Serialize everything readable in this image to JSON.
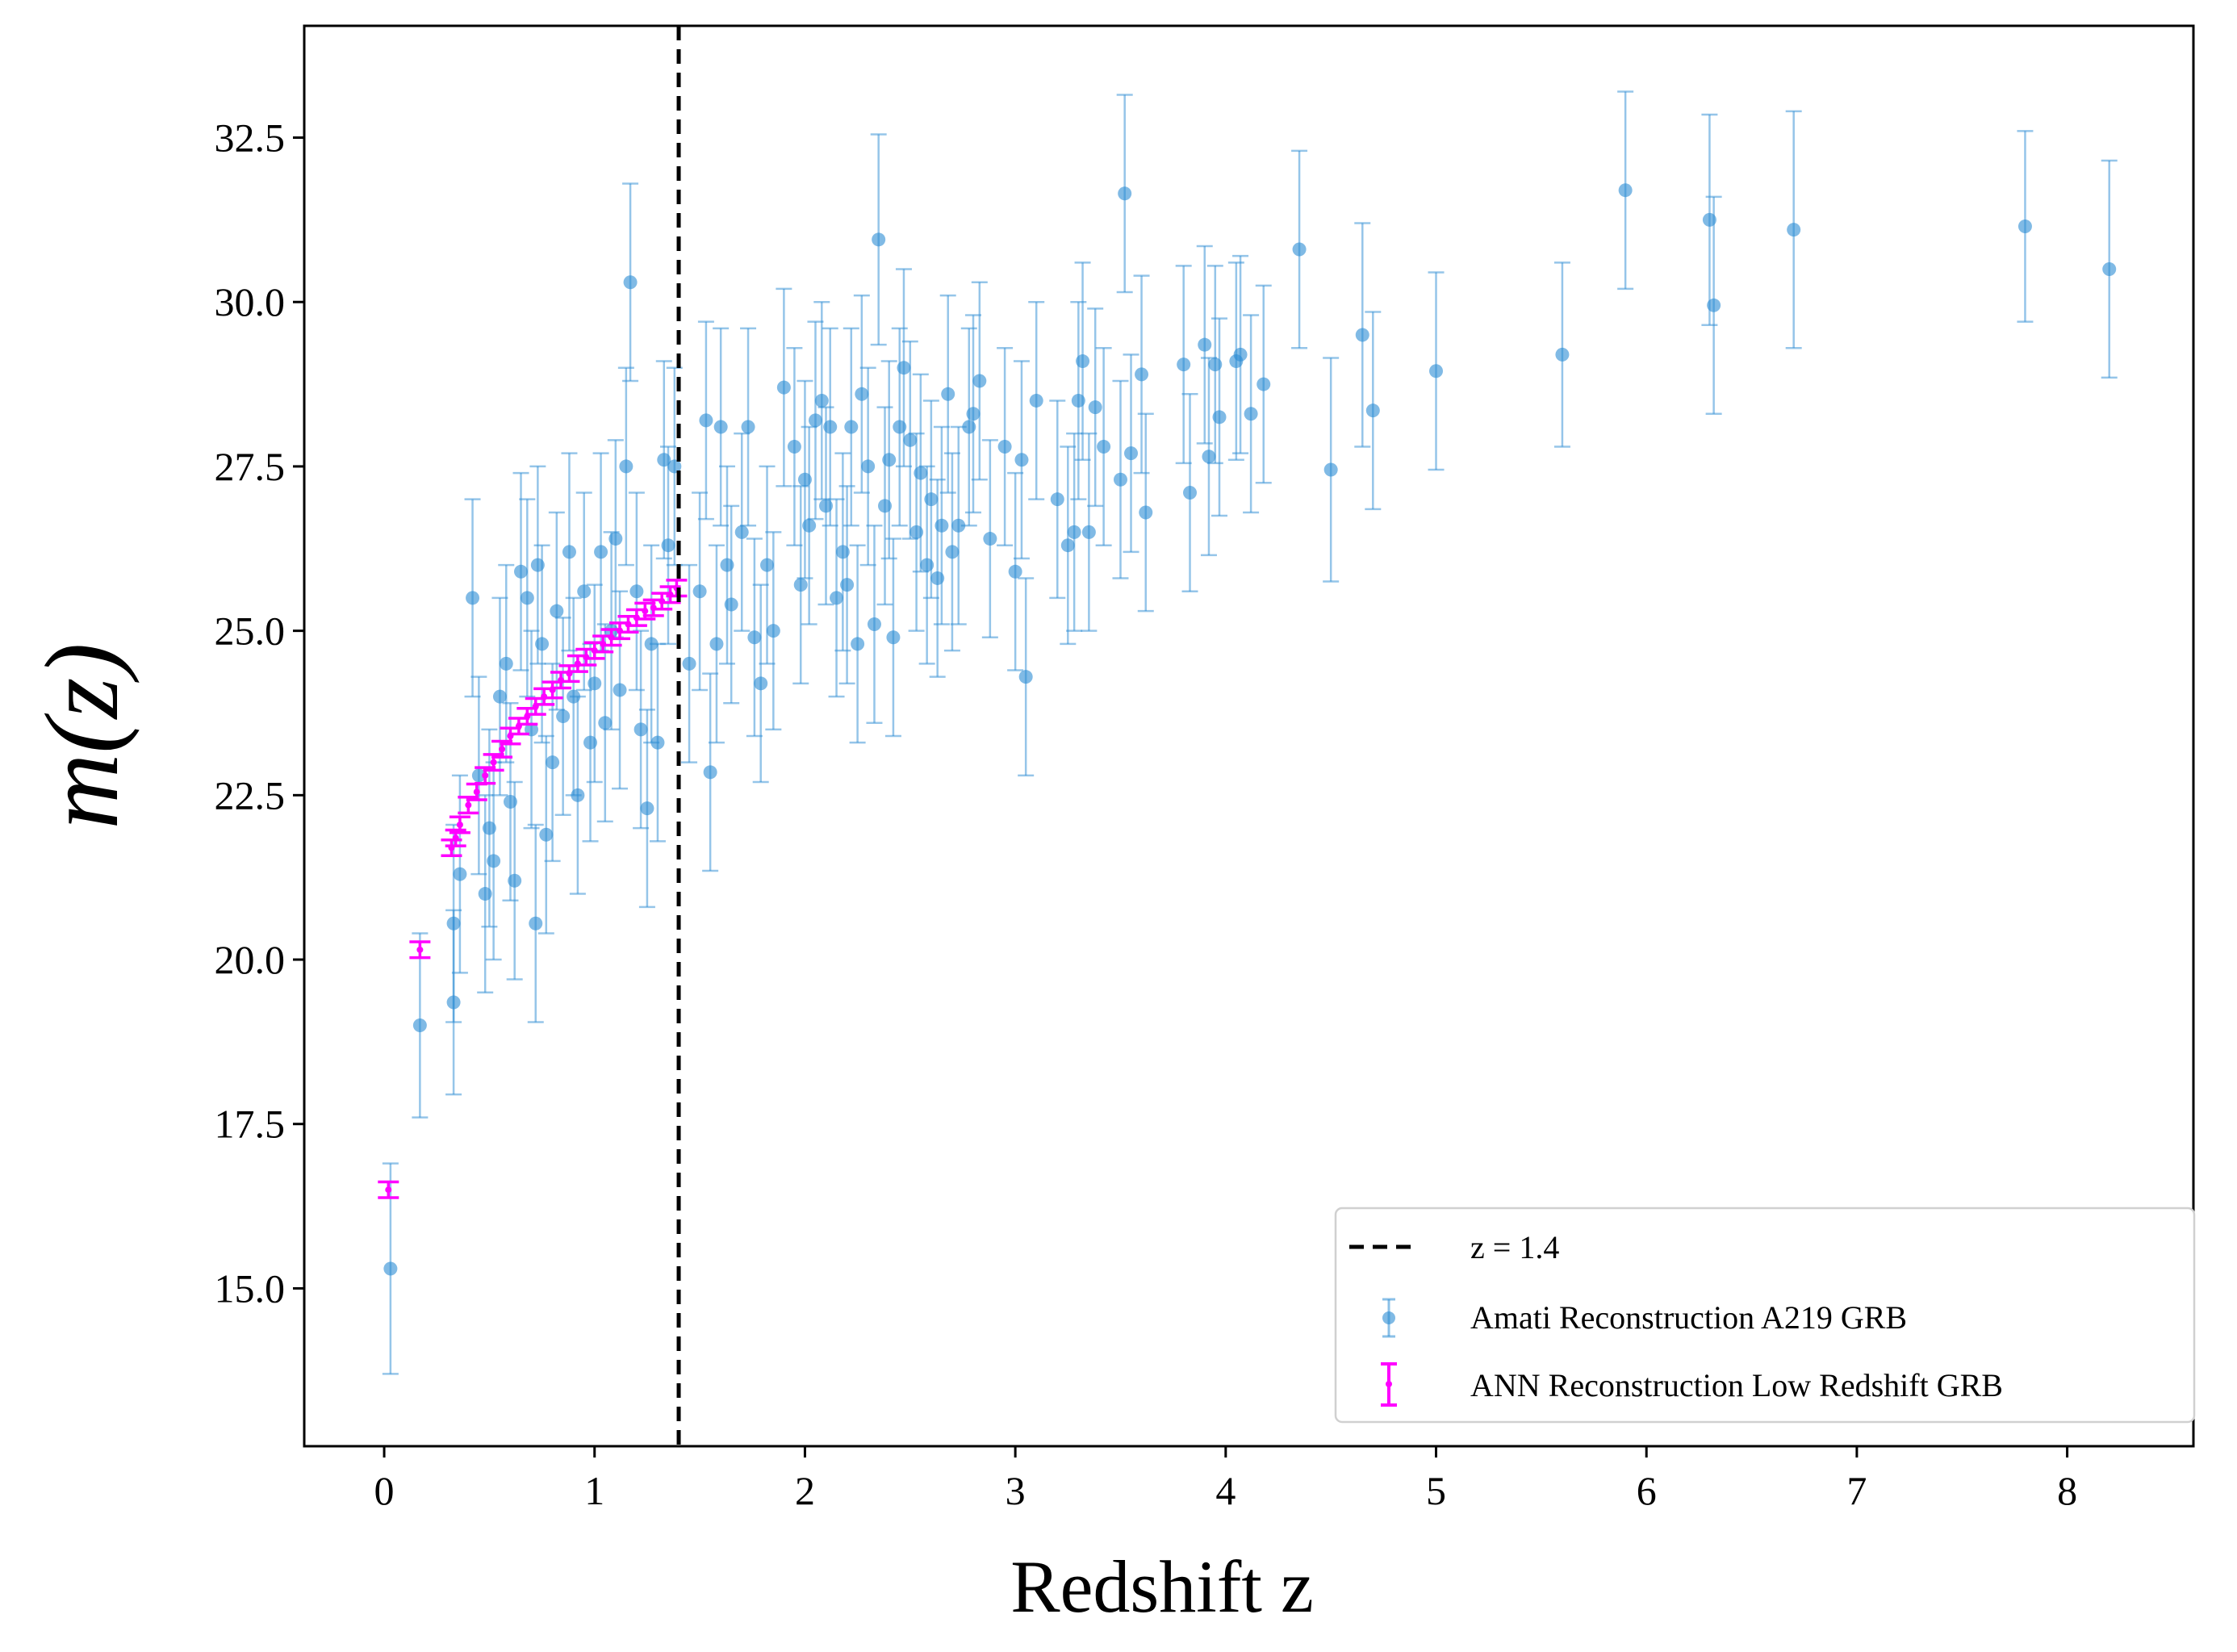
{
  "chart_data": {
    "type": "scatter",
    "title": "",
    "xlabel": "Redshift z",
    "ylabel": "m(z)",
    "xlim": [
      -0.38,
      8.6
    ],
    "ylim": [
      12.6,
      34.2
    ],
    "x_ticks": [
      0,
      1,
      2,
      3,
      4,
      5,
      6,
      7,
      8
    ],
    "x_tick_labels": [
      "0",
      "1",
      "2",
      "3",
      "4",
      "5",
      "6",
      "7",
      "8"
    ],
    "y_ticks": [
      15.0,
      17.5,
      20.0,
      22.5,
      25.0,
      27.5,
      30.0,
      32.5
    ],
    "y_tick_labels": [
      "15.0",
      "17.5",
      "20.0",
      "22.5",
      "25.0",
      "27.5",
      "30.0",
      "32.5"
    ],
    "grid": false,
    "legend_position": "bottom-right",
    "vline": {
      "x": 1.4,
      "label": "z = 1.4",
      "style": "dashed",
      "color": "#000000"
    },
    "series": [
      {
        "name": "Amati Reconstruction A219 GRB",
        "color": "#2b8cd4",
        "marker": "circle",
        "points": [
          {
            "x": 0.03,
            "y": 15.3,
            "err": 1.6
          },
          {
            "x": 0.17,
            "y": 19.0,
            "err": 1.4
          },
          {
            "x": 0.33,
            "y": 19.35,
            "err": 1.4
          },
          {
            "x": 0.33,
            "y": 20.55,
            "err": 1.5
          },
          {
            "x": 0.36,
            "y": 21.3,
            "err": 1.5
          },
          {
            "x": 0.42,
            "y": 25.5,
            "err": 1.5
          },
          {
            "x": 0.45,
            "y": 22.8,
            "err": 1.5
          },
          {
            "x": 0.48,
            "y": 21.0,
            "err": 1.5
          },
          {
            "x": 0.5,
            "y": 22.0,
            "err": 1.5
          },
          {
            "x": 0.52,
            "y": 21.5,
            "err": 1.5
          },
          {
            "x": 0.55,
            "y": 24.0,
            "err": 1.5
          },
          {
            "x": 0.58,
            "y": 24.5,
            "err": 1.5
          },
          {
            "x": 0.6,
            "y": 22.4,
            "err": 1.5
          },
          {
            "x": 0.62,
            "y": 21.2,
            "err": 1.5
          },
          {
            "x": 0.65,
            "y": 25.9,
            "err": 1.5
          },
          {
            "x": 0.68,
            "y": 25.5,
            "err": 1.5
          },
          {
            "x": 0.7,
            "y": 23.5,
            "err": 1.5
          },
          {
            "x": 0.72,
            "y": 20.55,
            "err": 1.5
          },
          {
            "x": 0.73,
            "y": 26.0,
            "err": 1.5
          },
          {
            "x": 0.75,
            "y": 24.8,
            "err": 1.5
          },
          {
            "x": 0.77,
            "y": 21.9,
            "err": 1.5
          },
          {
            "x": 0.8,
            "y": 23.0,
            "err": 1.5
          },
          {
            "x": 0.82,
            "y": 25.3,
            "err": 1.5
          },
          {
            "x": 0.85,
            "y": 23.7,
            "err": 1.5
          },
          {
            "x": 0.88,
            "y": 26.2,
            "err": 1.5
          },
          {
            "x": 0.9,
            "y": 24.0,
            "err": 1.5
          },
          {
            "x": 0.92,
            "y": 22.5,
            "err": 1.5
          },
          {
            "x": 0.95,
            "y": 25.6,
            "err": 1.5
          },
          {
            "x": 0.98,
            "y": 23.3,
            "err": 1.5
          },
          {
            "x": 1.0,
            "y": 24.2,
            "err": 1.5
          },
          {
            "x": 1.03,
            "y": 26.2,
            "err": 1.5
          },
          {
            "x": 1.05,
            "y": 23.6,
            "err": 1.5
          },
          {
            "x": 1.08,
            "y": 25.0,
            "err": 1.5
          },
          {
            "x": 1.1,
            "y": 26.4,
            "err": 1.5
          },
          {
            "x": 1.12,
            "y": 24.1,
            "err": 1.5
          },
          {
            "x": 1.15,
            "y": 27.5,
            "err": 1.5
          },
          {
            "x": 1.17,
            "y": 30.3,
            "err": 1.5
          },
          {
            "x": 1.2,
            "y": 25.6,
            "err": 1.5
          },
          {
            "x": 1.22,
            "y": 23.5,
            "err": 1.5
          },
          {
            "x": 1.25,
            "y": 22.3,
            "err": 1.5
          },
          {
            "x": 1.27,
            "y": 24.8,
            "err": 1.5
          },
          {
            "x": 1.3,
            "y": 23.3,
            "err": 1.5
          },
          {
            "x": 1.33,
            "y": 27.6,
            "err": 1.5
          },
          {
            "x": 1.35,
            "y": 26.3,
            "err": 1.5
          },
          {
            "x": 1.38,
            "y": 27.5,
            "err": 1.5
          },
          {
            "x": 1.45,
            "y": 24.5,
            "err": 1.5
          },
          {
            "x": 1.5,
            "y": 25.6,
            "err": 1.5
          },
          {
            "x": 1.53,
            "y": 28.2,
            "err": 1.5
          },
          {
            "x": 1.55,
            "y": 22.85,
            "err": 1.5
          },
          {
            "x": 1.58,
            "y": 24.8,
            "err": 1.5
          },
          {
            "x": 1.6,
            "y": 28.1,
            "err": 1.5
          },
          {
            "x": 1.63,
            "y": 26.0,
            "err": 1.5
          },
          {
            "x": 1.65,
            "y": 25.4,
            "err": 1.5
          },
          {
            "x": 1.7,
            "y": 26.5,
            "err": 1.5
          },
          {
            "x": 1.73,
            "y": 28.1,
            "err": 1.5
          },
          {
            "x": 1.76,
            "y": 24.9,
            "err": 1.5
          },
          {
            "x": 1.79,
            "y": 24.2,
            "err": 1.5
          },
          {
            "x": 1.82,
            "y": 26.0,
            "err": 1.5
          },
          {
            "x": 1.85,
            "y": 25.0,
            "err": 1.5
          },
          {
            "x": 1.9,
            "y": 28.7,
            "err": 1.5
          },
          {
            "x": 1.95,
            "y": 27.8,
            "err": 1.5
          },
          {
            "x": 1.98,
            "y": 25.7,
            "err": 1.5
          },
          {
            "x": 2.0,
            "y": 27.3,
            "err": 1.5
          },
          {
            "x": 2.02,
            "y": 26.6,
            "err": 1.5
          },
          {
            "x": 2.05,
            "y": 28.2,
            "err": 1.5
          },
          {
            "x": 2.08,
            "y": 28.5,
            "err": 1.5
          },
          {
            "x": 2.1,
            "y": 26.9,
            "err": 1.5
          },
          {
            "x": 2.12,
            "y": 28.1,
            "err": 1.5
          },
          {
            "x": 2.15,
            "y": 25.5,
            "err": 1.5
          },
          {
            "x": 2.18,
            "y": 26.2,
            "err": 1.5
          },
          {
            "x": 2.2,
            "y": 25.7,
            "err": 1.5
          },
          {
            "x": 2.22,
            "y": 28.1,
            "err": 1.5
          },
          {
            "x": 2.25,
            "y": 24.8,
            "err": 1.5
          },
          {
            "x": 2.27,
            "y": 28.6,
            "err": 1.5
          },
          {
            "x": 2.3,
            "y": 27.5,
            "err": 1.5
          },
          {
            "x": 2.33,
            "y": 25.1,
            "err": 1.5
          },
          {
            "x": 2.35,
            "y": 30.95,
            "err": 1.6
          },
          {
            "x": 2.38,
            "y": 26.9,
            "err": 1.5
          },
          {
            "x": 2.4,
            "y": 27.6,
            "err": 1.5
          },
          {
            "x": 2.42,
            "y": 24.9,
            "err": 1.5
          },
          {
            "x": 2.45,
            "y": 28.1,
            "err": 1.5
          },
          {
            "x": 2.47,
            "y": 29.0,
            "err": 1.5
          },
          {
            "x": 2.5,
            "y": 27.9,
            "err": 1.5
          },
          {
            "x": 2.53,
            "y": 26.5,
            "err": 1.5
          },
          {
            "x": 2.55,
            "y": 27.4,
            "err": 1.5
          },
          {
            "x": 2.58,
            "y": 26.0,
            "err": 1.5
          },
          {
            "x": 2.6,
            "y": 27.0,
            "err": 1.5
          },
          {
            "x": 2.63,
            "y": 25.8,
            "err": 1.5
          },
          {
            "x": 2.65,
            "y": 26.6,
            "err": 1.5
          },
          {
            "x": 2.68,
            "y": 28.6,
            "err": 1.5
          },
          {
            "x": 2.7,
            "y": 26.2,
            "err": 1.5
          },
          {
            "x": 2.73,
            "y": 26.6,
            "err": 1.5
          },
          {
            "x": 2.78,
            "y": 28.1,
            "err": 1.5
          },
          {
            "x": 2.8,
            "y": 28.3,
            "err": 1.5
          },
          {
            "x": 2.83,
            "y": 28.8,
            "err": 1.5
          },
          {
            "x": 2.88,
            "y": 26.4,
            "err": 1.5
          },
          {
            "x": 2.95,
            "y": 27.8,
            "err": 1.5
          },
          {
            "x": 3.0,
            "y": 25.9,
            "err": 1.5
          },
          {
            "x": 3.03,
            "y": 27.6,
            "err": 1.5
          },
          {
            "x": 3.05,
            "y": 24.3,
            "err": 1.5
          },
          {
            "x": 3.1,
            "y": 28.5,
            "err": 1.5
          },
          {
            "x": 3.2,
            "y": 27.0,
            "err": 1.5
          },
          {
            "x": 3.25,
            "y": 26.3,
            "err": 1.5
          },
          {
            "x": 3.28,
            "y": 26.5,
            "err": 1.5
          },
          {
            "x": 3.3,
            "y": 28.5,
            "err": 1.5
          },
          {
            "x": 3.32,
            "y": 29.1,
            "err": 1.5
          },
          {
            "x": 3.35,
            "y": 26.5,
            "err": 1.5
          },
          {
            "x": 3.38,
            "y": 28.4,
            "err": 1.5
          },
          {
            "x": 3.42,
            "y": 27.8,
            "err": 1.5
          },
          {
            "x": 3.5,
            "y": 27.3,
            "err": 1.5
          },
          {
            "x": 3.52,
            "y": 31.65,
            "err": 1.5
          },
          {
            "x": 3.55,
            "y": 27.7,
            "err": 1.5
          },
          {
            "x": 3.6,
            "y": 28.9,
            "err": 1.5
          },
          {
            "x": 3.62,
            "y": 26.8,
            "err": 1.5
          },
          {
            "x": 3.8,
            "y": 29.05,
            "err": 1.5
          },
          {
            "x": 3.83,
            "y": 27.1,
            "err": 1.5
          },
          {
            "x": 3.9,
            "y": 29.35,
            "err": 1.5
          },
          {
            "x": 3.92,
            "y": 27.65,
            "err": 1.5
          },
          {
            "x": 3.95,
            "y": 29.05,
            "err": 1.5
          },
          {
            "x": 3.97,
            "y": 28.25,
            "err": 1.5
          },
          {
            "x": 4.05,
            "y": 29.1,
            "err": 1.5
          },
          {
            "x": 4.07,
            "y": 29.2,
            "err": 1.5
          },
          {
            "x": 4.12,
            "y": 28.3,
            "err": 1.5
          },
          {
            "x": 4.18,
            "y": 28.75,
            "err": 1.5
          },
          {
            "x": 4.35,
            "y": 30.8,
            "err": 1.5
          },
          {
            "x": 4.5,
            "y": 27.45,
            "err": 1.7
          },
          {
            "x": 4.65,
            "y": 29.5,
            "err": 1.7
          },
          {
            "x": 4.7,
            "y": 28.35,
            "err": 1.5
          },
          {
            "x": 5.0,
            "y": 28.95,
            "err": 1.5
          },
          {
            "x": 5.6,
            "y": 29.2,
            "err": 1.4
          },
          {
            "x": 5.9,
            "y": 31.7,
            "err": 1.5
          },
          {
            "x": 6.3,
            "y": 31.25,
            "err": 1.6
          },
          {
            "x": 6.32,
            "y": 29.95,
            "err": 1.65
          },
          {
            "x": 6.7,
            "y": 31.1,
            "err": 1.8
          },
          {
            "x": 7.8,
            "y": 31.15,
            "err": 1.45
          },
          {
            "x": 8.2,
            "y": 30.5,
            "err": 1.65
          }
        ]
      },
      {
        "name": "ANN Reconstruction Low Redshift GRB",
        "color": "#ff00ff",
        "marker": "point",
        "points": [
          {
            "x": 0.02,
            "y": 16.5,
            "err": 0.12
          },
          {
            "x": 0.17,
            "y": 20.15,
            "err": 0.12
          },
          {
            "x": 0.32,
            "y": 21.7,
            "err": 0.12
          },
          {
            "x": 0.34,
            "y": 21.85,
            "err": 0.12
          },
          {
            "x": 0.36,
            "y": 22.05,
            "err": 0.12
          },
          {
            "x": 0.4,
            "y": 22.35,
            "err": 0.12
          },
          {
            "x": 0.44,
            "y": 22.55,
            "err": 0.12
          },
          {
            "x": 0.48,
            "y": 22.8,
            "err": 0.12
          },
          {
            "x": 0.52,
            "y": 23.0,
            "err": 0.12
          },
          {
            "x": 0.56,
            "y": 23.2,
            "err": 0.12
          },
          {
            "x": 0.6,
            "y": 23.4,
            "err": 0.12
          },
          {
            "x": 0.64,
            "y": 23.55,
            "err": 0.12
          },
          {
            "x": 0.68,
            "y": 23.7,
            "err": 0.12
          },
          {
            "x": 0.72,
            "y": 23.85,
            "err": 0.12
          },
          {
            "x": 0.76,
            "y": 24.0,
            "err": 0.12
          },
          {
            "x": 0.8,
            "y": 24.1,
            "err": 0.12
          },
          {
            "x": 0.84,
            "y": 24.25,
            "err": 0.12
          },
          {
            "x": 0.88,
            "y": 24.35,
            "err": 0.12
          },
          {
            "x": 0.92,
            "y": 24.5,
            "err": 0.12
          },
          {
            "x": 0.96,
            "y": 24.6,
            "err": 0.12
          },
          {
            "x": 1.0,
            "y": 24.7,
            "err": 0.12
          },
          {
            "x": 1.04,
            "y": 24.8,
            "err": 0.12
          },
          {
            "x": 1.08,
            "y": 24.9,
            "err": 0.12
          },
          {
            "x": 1.12,
            "y": 25.0,
            "err": 0.12
          },
          {
            "x": 1.16,
            "y": 25.1,
            "err": 0.12
          },
          {
            "x": 1.2,
            "y": 25.2,
            "err": 0.12
          },
          {
            "x": 1.24,
            "y": 25.3,
            "err": 0.12
          },
          {
            "x": 1.28,
            "y": 25.35,
            "err": 0.12
          },
          {
            "x": 1.32,
            "y": 25.45,
            "err": 0.12
          },
          {
            "x": 1.36,
            "y": 25.55,
            "err": 0.12
          },
          {
            "x": 1.39,
            "y": 25.65,
            "err": 0.12
          }
        ]
      }
    ]
  }
}
